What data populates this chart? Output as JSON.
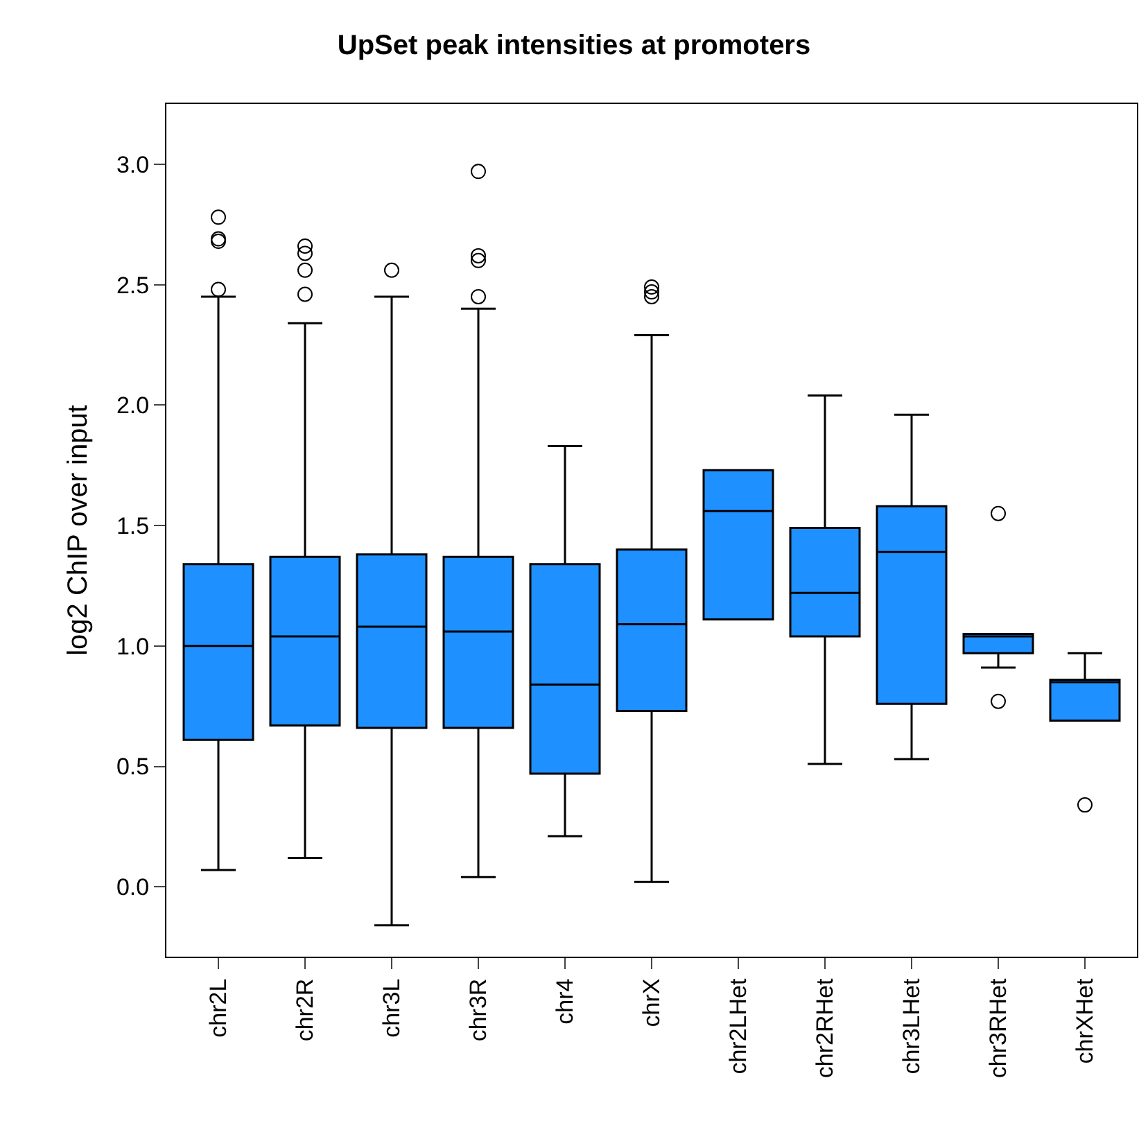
{
  "chart_data": {
    "type": "box",
    "title": "UpSet peak intensities at promoters",
    "ylabel": "log2 ChIP over input",
    "categories": [
      "chr2L",
      "chr2R",
      "chr3L",
      "chr3R",
      "chr4",
      "chrX",
      "chr2LHet",
      "chr2RHet",
      "chr3LHet",
      "chr3RHet",
      "chrXHet"
    ],
    "color": "#1e90ff",
    "boxes": [
      {
        "low": 0.07,
        "q1": 0.61,
        "median": 1.0,
        "q3": 1.34,
        "high": 2.45,
        "outliers": [
          2.78,
          2.69,
          2.68,
          2.48
        ]
      },
      {
        "low": 0.12,
        "q1": 0.67,
        "median": 1.04,
        "q3": 1.37,
        "high": 2.34,
        "outliers": [
          2.66,
          2.63,
          2.56,
          2.46
        ]
      },
      {
        "low": -0.16,
        "q1": 0.66,
        "median": 1.08,
        "q3": 1.38,
        "high": 2.45,
        "outliers": [
          2.56
        ]
      },
      {
        "low": 0.04,
        "q1": 0.66,
        "median": 1.06,
        "q3": 1.37,
        "high": 2.4,
        "outliers": [
          2.97,
          2.62,
          2.6,
          2.45
        ]
      },
      {
        "low": 0.21,
        "q1": 0.47,
        "median": 0.84,
        "q3": 1.34,
        "high": 1.83
      },
      {
        "low": 0.02,
        "q1": 0.73,
        "median": 1.09,
        "q3": 1.4,
        "high": 2.29,
        "outliers": [
          2.49,
          2.47,
          2.45
        ]
      },
      {
        "low": 1.11,
        "q1": 1.11,
        "median": 1.56,
        "q3": 1.73,
        "high": 1.73
      },
      {
        "low": 0.51,
        "q1": 1.04,
        "median": 1.22,
        "q3": 1.49,
        "high": 2.04
      },
      {
        "low": 0.53,
        "q1": 0.76,
        "median": 1.39,
        "q3": 1.58,
        "high": 1.96
      },
      {
        "low": 0.91,
        "q1": 0.97,
        "median": 1.04,
        "q3": 1.05,
        "high": 1.05,
        "outliers": [
          1.55,
          0.77
        ]
      },
      {
        "low": 0.69,
        "q1": 0.69,
        "median": 0.85,
        "q3": 0.86,
        "high": 0.97,
        "outliers": [
          0.34
        ]
      }
    ],
    "ylim": [
      -0.29,
      3.25
    ],
    "yticks": [
      {
        "value": 0,
        "label": "0.0"
      },
      0.5,
      {
        "value": 1,
        "label": "1.0"
      },
      1.5,
      {
        "value": 2,
        "label": "2.0"
      },
      2.5,
      {
        "value": 3,
        "label": "3.0"
      }
    ]
  }
}
